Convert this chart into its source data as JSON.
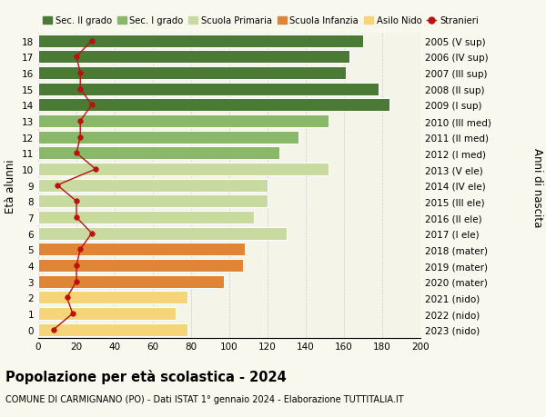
{
  "ages": [
    0,
    1,
    2,
    3,
    4,
    5,
    6,
    7,
    8,
    9,
    10,
    11,
    12,
    13,
    14,
    15,
    16,
    17,
    18
  ],
  "bar_values": [
    78,
    72,
    78,
    97,
    107,
    108,
    130,
    113,
    120,
    120,
    152,
    126,
    136,
    152,
    184,
    178,
    161,
    163,
    170
  ],
  "bar_colors": [
    "#f5d47a",
    "#f5d47a",
    "#f5d47a",
    "#e08535",
    "#e08535",
    "#e08535",
    "#c8daa0",
    "#c8daa0",
    "#c8daa0",
    "#c8daa0",
    "#c8daa0",
    "#8ab86a",
    "#8ab86a",
    "#8ab86a",
    "#4a7a35",
    "#4a7a35",
    "#4a7a35",
    "#4a7a35",
    "#4a7a35"
  ],
  "stranieri": [
    8,
    18,
    15,
    20,
    20,
    22,
    28,
    20,
    20,
    10,
    30,
    20,
    22,
    22,
    28,
    22,
    22,
    20,
    28
  ],
  "right_labels": [
    "2023 (nido)",
    "2022 (nido)",
    "2021 (nido)",
    "2020 (mater)",
    "2019 (mater)",
    "2018 (mater)",
    "2017 (I ele)",
    "2016 (II ele)",
    "2015 (III ele)",
    "2014 (IV ele)",
    "2013 (V ele)",
    "2012 (I med)",
    "2011 (II med)",
    "2010 (III med)",
    "2009 (I sup)",
    "2008 (II sup)",
    "2007 (III sup)",
    "2006 (IV sup)",
    "2005 (V sup)"
  ],
  "legend_labels": [
    "Sec. II grado",
    "Sec. I grado",
    "Scuola Primaria",
    "Scuola Infanzia",
    "Asilo Nido",
    "Stranieri"
  ],
  "legend_colors": [
    "#4a7a35",
    "#8ab86a",
    "#c8daa0",
    "#e08535",
    "#f5d47a",
    "#bb1111"
  ],
  "title": "Popolazione per età scolastica - 2024",
  "subtitle": "COMUNE DI CARMIGNANO (PO) - Dati ISTAT 1° gennaio 2024 - Elaborazione TUTTITALIA.IT",
  "ylabel": "Età alunni",
  "ylabel2": "Anni di nascita",
  "xlim": [
    0,
    200
  ],
  "xticks": [
    0,
    20,
    40,
    60,
    80,
    100,
    120,
    140,
    160,
    180,
    200
  ],
  "background_color": "#f8f8ee",
  "bar_background": "#f4f4e8",
  "grid_color": "#cccccc"
}
